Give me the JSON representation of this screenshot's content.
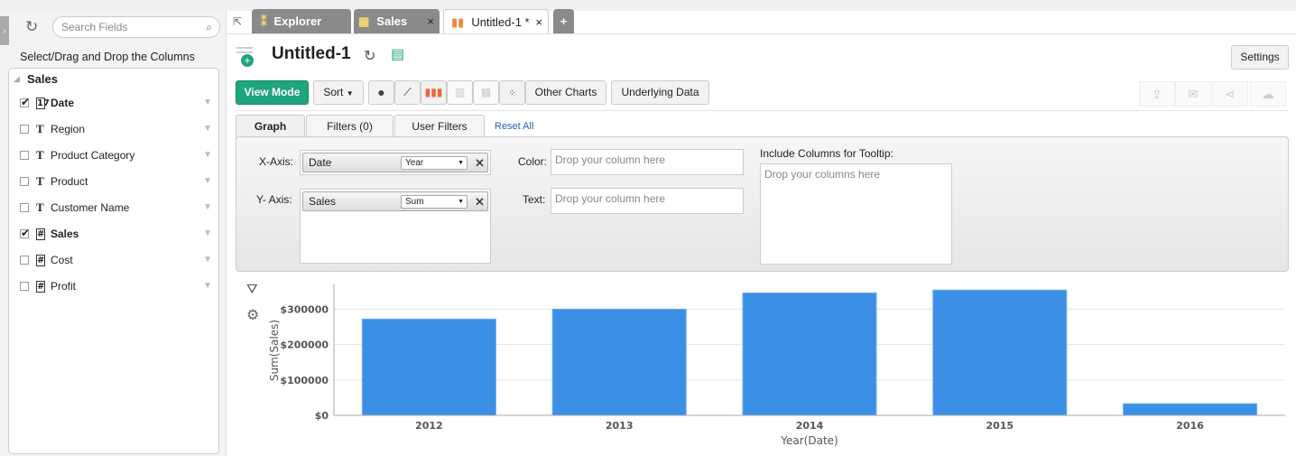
{
  "sidebar": {
    "search_placeholder": "Search Fields",
    "heading": "Select/Drag and Drop the Columns",
    "table": "Sales",
    "fields": [
      {
        "name": "Date",
        "type": "date",
        "checked": true
      },
      {
        "name": "Region",
        "type": "text",
        "checked": false
      },
      {
        "name": "Product Category",
        "type": "text",
        "checked": false
      },
      {
        "name": "Product",
        "type": "text",
        "checked": false
      },
      {
        "name": "Customer Name",
        "type": "text",
        "checked": false
      },
      {
        "name": "Sales",
        "type": "number",
        "checked": true
      },
      {
        "name": "Cost",
        "type": "number",
        "checked": false
      },
      {
        "name": "Profit",
        "type": "number",
        "checked": false
      }
    ]
  },
  "tabs": [
    {
      "label": "Explorer"
    },
    {
      "label": "Sales"
    },
    {
      "label": "Untitled-1 *",
      "active": true
    }
  ],
  "report": {
    "title": "Untitled-1",
    "settings": "Settings"
  },
  "toolbar": {
    "view_mode": "View Mode",
    "sort": "Sort",
    "other_charts": "Other Charts",
    "underlying_data": "Underlying Data",
    "accent": "#1fa57e"
  },
  "config_tabs": {
    "graph": "Graph",
    "filters": "Filters  (0)",
    "user_filters": "User Filters",
    "reset_all": "Reset All"
  },
  "config": {
    "x_axis_label": "X-Axis:",
    "x_column": "Date",
    "x_agg": "Year",
    "y_axis_label": "Y- Axis:",
    "y_column": "Sales",
    "y_agg": "Sum",
    "color_label": "Color:",
    "text_label": "Text:",
    "drop_placeholder": "Drop your column here",
    "tooltip_label": "Include Columns for Tooltip:",
    "tooltip_placeholder": "Drop your columns here"
  },
  "chart_data": {
    "type": "bar",
    "categories": [
      "2012",
      "2013",
      "2014",
      "2015",
      "2016"
    ],
    "values": [
      272000,
      300000,
      346000,
      354000,
      33000
    ],
    "xlabel": "Year(Date)",
    "ylabel": "Sum(Sales)",
    "ylim": [
      0,
      370000
    ],
    "yticks": [
      "$0",
      "$100000",
      "$200000",
      "$300000"
    ],
    "ytick_values": [
      0,
      100000,
      200000,
      300000
    ],
    "grid": true,
    "bar_color": "#3b90e6"
  }
}
